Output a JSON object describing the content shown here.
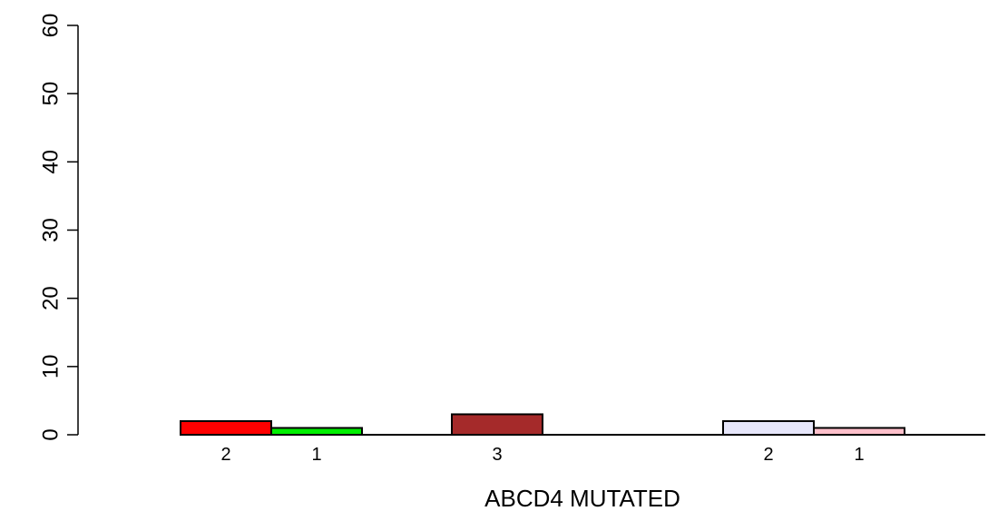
{
  "chart_data": {
    "type": "bar",
    "xlabel": "ABCD4 MUTATED",
    "ylabel": "",
    "ylim": [
      0,
      60
    ],
    "yticks": [
      0,
      10,
      20,
      30,
      40,
      50,
      60
    ],
    "grid": false,
    "legend": "none",
    "bars": [
      {
        "value": 2,
        "label": "2",
        "color": "#ff0000"
      },
      {
        "value": 1,
        "label": "1",
        "color": "#00ee00"
      },
      {
        "value": 3,
        "label": "3",
        "color": "#a52a2a"
      },
      {
        "value": 2,
        "label": "2",
        "color": "#e6e6fa"
      },
      {
        "value": 1,
        "label": "1",
        "color": "#ffc0cb"
      }
    ]
  }
}
